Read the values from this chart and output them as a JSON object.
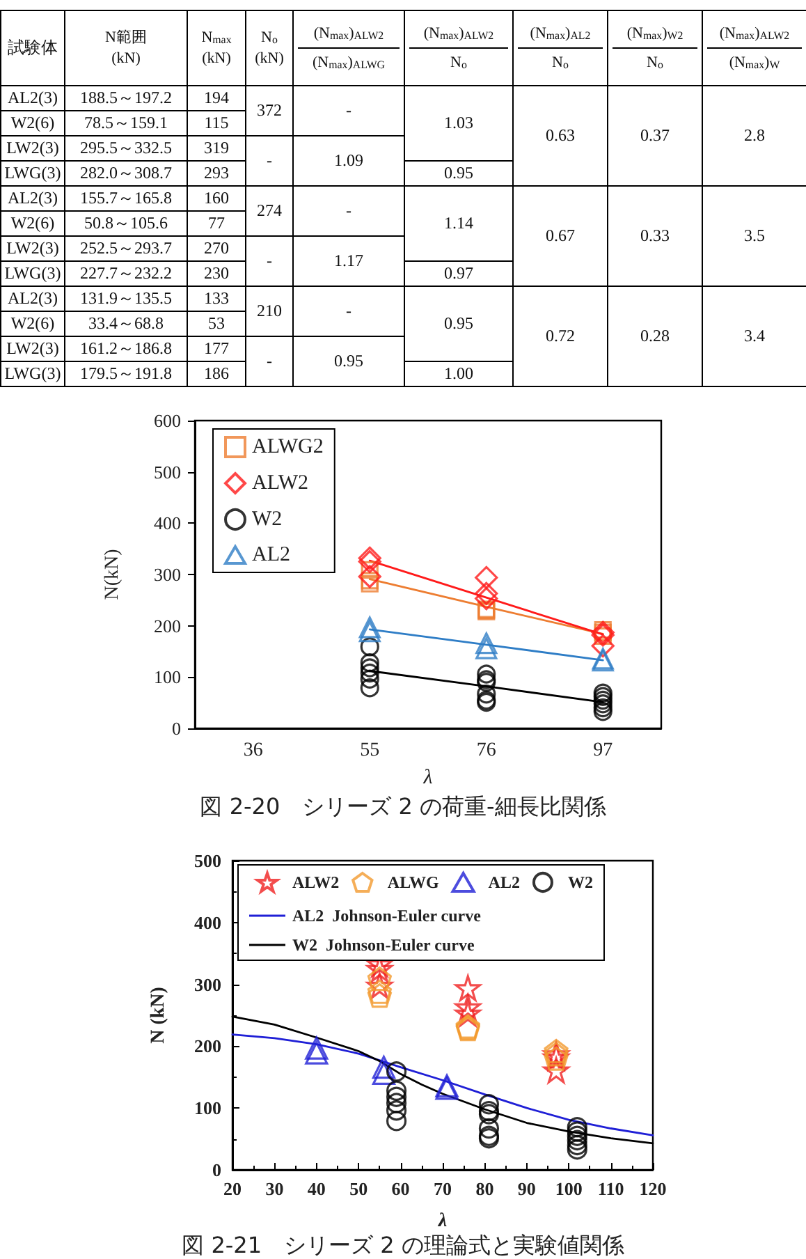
{
  "chart_data": [
    {
      "type": "other",
      "categories": [
        "試験体",
        "N範囲\n(kN)",
        "N$_{max}$\n(kN)",
        "N$_{o}$\n(kN)",
        "(N$_{max}$)$_{ALW2}$\n(N$_{max}$)$_{ALWG}$",
        "(N$_{max}$)$_{ALW2}$\nN$_{o}$",
        "(N$_{max}$)$_{AL2}$\nN$_{o}$",
        "(N$_{max}$)$_{W2}$\nN$_{o}$",
        "(N$_{max}$)$_{ALW2}$\n(N$_{max}$)$_{W}$"
      ],
      "y_categories": [
        "AL2(3)",
        "W2(6)",
        "LW2(3)",
        "LWG(3)",
        "AL2(3)",
        "W2(6)",
        "LW2(3)",
        "LWG(3)",
        "AL2(3)",
        "W2(6)",
        "LW2(3)",
        "LWG(3)"
      ],
      "cell_labels": [
        [
          "188.5～197.2",
          "194",
          "372",
          "-",
          "1.03",
          "0.63",
          "0.37",
          "2.8"
        ],
        [
          "78.5～159.1",
          "115",
          null,
          null,
          null,
          null,
          null,
          null
        ],
        [
          "295.5～332.5",
          "319",
          "-",
          "1.09",
          null,
          null,
          null,
          null
        ],
        [
          "282.0～308.7",
          "293",
          null,
          null,
          "0.95",
          null,
          null,
          null
        ],
        [
          "155.7～165.8",
          "160",
          "274",
          "-",
          "1.14",
          "0.67",
          "0.33",
          "3.5"
        ],
        [
          "50.8～105.6",
          "77",
          null,
          null,
          null,
          null,
          null,
          null
        ],
        [
          "252.5～293.7",
          "270",
          "-",
          "1.17",
          null,
          null,
          null,
          null
        ],
        [
          "227.7～232.2",
          "230",
          null,
          null,
          "0.97",
          null,
          null,
          null
        ],
        [
          "131.9～135.5",
          "133",
          "210",
          "-",
          "0.95",
          "0.72",
          "0.28",
          "3.4"
        ],
        [
          "33.4～68.8",
          "53",
          null,
          null,
          null,
          null,
          null,
          null
        ],
        [
          "161.2～186.8",
          "177",
          "-",
          "0.95",
          null,
          null,
          null,
          null
        ],
        [
          "179.5～191.8",
          "186",
          null,
          null,
          "1.00",
          null,
          null,
          null
        ]
      ]
    },
    {
      "type": "scatter",
      "title": "図 2-20　シリーズ 2 の荷重-細長比関係",
      "xlabel": "λ",
      "ylabel": "N(kN)",
      "categories": [
        "36",
        "55",
        "76",
        "97"
      ],
      "ylim": [
        0,
        600
      ],
      "yticks": [
        0,
        100,
        200,
        300,
        400,
        500,
        600
      ],
      "legend": "top left",
      "series": [
        {
          "name": "ALWG2",
          "color": "#ed7d31",
          "marker": "square",
          "x": [
            "55",
            "55",
            "55",
            "76",
            "76",
            "76",
            "97",
            "97",
            "97"
          ],
          "values": [
            309,
            288,
            282,
            232,
            230,
            228,
            192,
            187,
            180
          ]
        },
        {
          "name": "ALW2",
          "color": "#ff1a1a",
          "marker": "diamond",
          "x": [
            "55",
            "55",
            "55",
            "76",
            "76",
            "76",
            "97",
            "97",
            "97"
          ],
          "values": [
            332,
            325,
            296,
            294,
            263,
            253,
            187,
            182,
            161
          ]
        },
        {
          "name": "W2",
          "color": "#000000",
          "marker": "circle",
          "x": [
            "55",
            "55",
            "55",
            "55",
            "55",
            "55",
            "76",
            "76",
            "76",
            "76",
            "76",
            "76",
            "97",
            "97",
            "97",
            "97",
            "97",
            "97"
          ],
          "values": [
            159,
            128,
            118,
            108,
            96,
            79,
            106,
            95,
            90,
            67,
            55,
            51,
            69,
            62,
            55,
            48,
            40,
            33
          ]
        },
        {
          "name": "AL2",
          "color": "#2e7dc6",
          "marker": "triangle",
          "x": [
            "55",
            "55",
            "76",
            "76",
            "97",
            "97"
          ],
          "values": [
            197,
            189,
            166,
            156,
            136,
            132
          ]
        },
        {
          "type": "line",
          "color": "#ed7d31",
          "values": [
            null,
            291,
            237,
            184
          ]
        },
        {
          "type": "line",
          "color": "#ff1a1a",
          "values": [
            null,
            327,
            255,
            183
          ]
        },
        {
          "type": "line",
          "color": "#000000",
          "values": [
            null,
            112,
            82,
            51
          ]
        },
        {
          "type": "line",
          "color": "#2e7dc6",
          "values": [
            null,
            193,
            163,
            133
          ]
        }
      ]
    },
    {
      "type": "scatter",
      "title": "図 2-21　シリーズ 2 の理論式と実験値関係",
      "xlabel": "λ",
      "ylabel": "N (kN)",
      "xlim": [
        20,
        120
      ],
      "xticks": [
        20,
        30,
        40,
        50,
        60,
        70,
        80,
        90,
        100,
        110,
        120
      ],
      "ylim": [
        0,
        500
      ],
      "yticks": [
        0,
        100,
        200,
        300,
        400,
        500
      ],
      "legend": "top",
      "series": [
        {
          "name": "ALW2",
          "color": "#f02020",
          "marker": "star",
          "x": [
            55,
            55,
            55,
            76,
            76,
            76,
            97,
            97,
            97
          ],
          "values": [
            333,
            325,
            298,
            294,
            263,
            253,
            187,
            182,
            161
          ]
        },
        {
          "name": "ALWG",
          "color": "#f39a2e",
          "x": [
            55,
            55,
            55,
            76,
            76,
            76,
            97,
            97,
            97
          ],
          "values": [
            309,
            288,
            282,
            232,
            230,
            228,
            192,
            187,
            180
          ]
        },
        {
          "name": "AL2",
          "color": "#1f1fd6",
          "marker": "triangle",
          "x": [
            40,
            40,
            56,
            56,
            71,
            71
          ],
          "values": [
            197,
            189,
            166,
            156,
            136,
            132
          ]
        },
        {
          "name": "W2",
          "color": "#000000",
          "marker": "circle",
          "x": [
            59,
            59,
            59,
            59,
            59,
            59,
            81,
            81,
            81,
            81,
            81,
            81,
            102,
            102,
            102,
            102,
            102,
            102
          ],
          "values": [
            159,
            128,
            118,
            108,
            96,
            79,
            106,
            95,
            90,
            67,
            55,
            51,
            69,
            62,
            55,
            48,
            40,
            33
          ]
        },
        {
          "name": "AL2  Johnson-Euler curve",
          "type": "line",
          "color": "#1f1fd6",
          "x": [
            20,
            30,
            40,
            50,
            56,
            60,
            70,
            80,
            90,
            100,
            110,
            120
          ],
          "values": [
            219,
            213,
            203,
            188,
            175,
            166,
            145,
            122,
            100,
            81,
            67,
            56
          ]
        },
        {
          "name": "W2  Johnson-Euler curve",
          "type": "line",
          "color": "#000000",
          "x": [
            20,
            30,
            40,
            50,
            55,
            60,
            65,
            70,
            80,
            90,
            100,
            110,
            120
          ],
          "values": [
            248,
            235,
            214,
            192,
            176,
            155,
            138,
            123,
            98,
            76,
            62,
            51,
            43
          ]
        }
      ]
    }
  ]
}
